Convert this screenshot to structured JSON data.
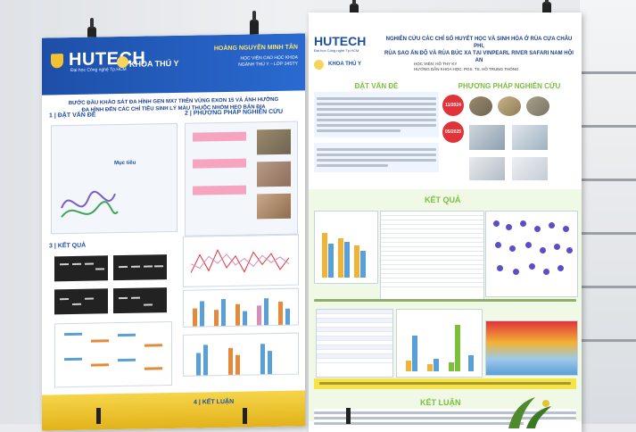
{
  "left_poster": {
    "logo": "HUTECH",
    "logo_sub": "Đại học Công nghệ Tp.HCM",
    "faculty": "KHOA THÚ Y",
    "author": "HOÀNG NGUYỄN MINH TÂN",
    "author_info_1": "HỌC VIÊN CAO HỌC KHOA",
    "author_info_2": "NGÀNH THÚ Y – LỚP 24STY",
    "title_line_1": "BƯỚC ĐẦU KHẢO SÁT ĐA HÌNH GEN MX7 TRÊN VÙNG EXON 15 VÀ ẢNH HƯỞNG",
    "title_line_2": "ĐA HÌNH ĐẾN CÁC CHỈ TIÊU SINH LÝ MÁU THUỘC NHÓM HEO BẢN ĐỊA",
    "sec1": "1 | ĐẶT VẤN ĐỀ",
    "sec2": "2 | PHƯƠNG PHÁP NGHIÊN CỨU",
    "sec3": "3 | KẾT QUẢ",
    "sec4": "4 | KẾT LUẬN",
    "muc_tieu": "Mục tiêu"
  },
  "right_poster": {
    "logo": "HUTECH",
    "logo_sub": "Đại học Công nghệ Tp.HCM",
    "faculty": "KHOA THÚ Y",
    "title_line_1": "NGHIÊN CỨU CÁC CHỈ SỐ HUYẾT HỌC VÀ SINH HÓA Ở RÙA CỰA CHÂU PHI,",
    "title_line_2": "RÙA SAO ẤN ĐỘ VÀ RÙA BÚC XA TẠI VINPEARL RIVER SAFARI NAM HỘI AN",
    "student": "HỌC VIÊN: HỒ THY KY",
    "advisor": "HƯỚNG DẪN KHOA HỌC: PGS. TS. HỒ TRUNG THÔNG",
    "sec_dat_van_de": "ĐẶT VẤN ĐỀ",
    "sec_phuong_phap": "PHƯƠNG PHÁP NGHIÊN CỨU",
    "sec_ket_qua": "KẾT QUẢ",
    "sec_ket_luan": "KẾT LUẬN",
    "date_1": "11/2024",
    "date_2": "05/2025"
  },
  "colors": {
    "hutech_blue": "#1d4fa8",
    "accent_yellow": "#f2c230",
    "accent_green": "#7bbf3b",
    "date_red": "#e0333a"
  }
}
